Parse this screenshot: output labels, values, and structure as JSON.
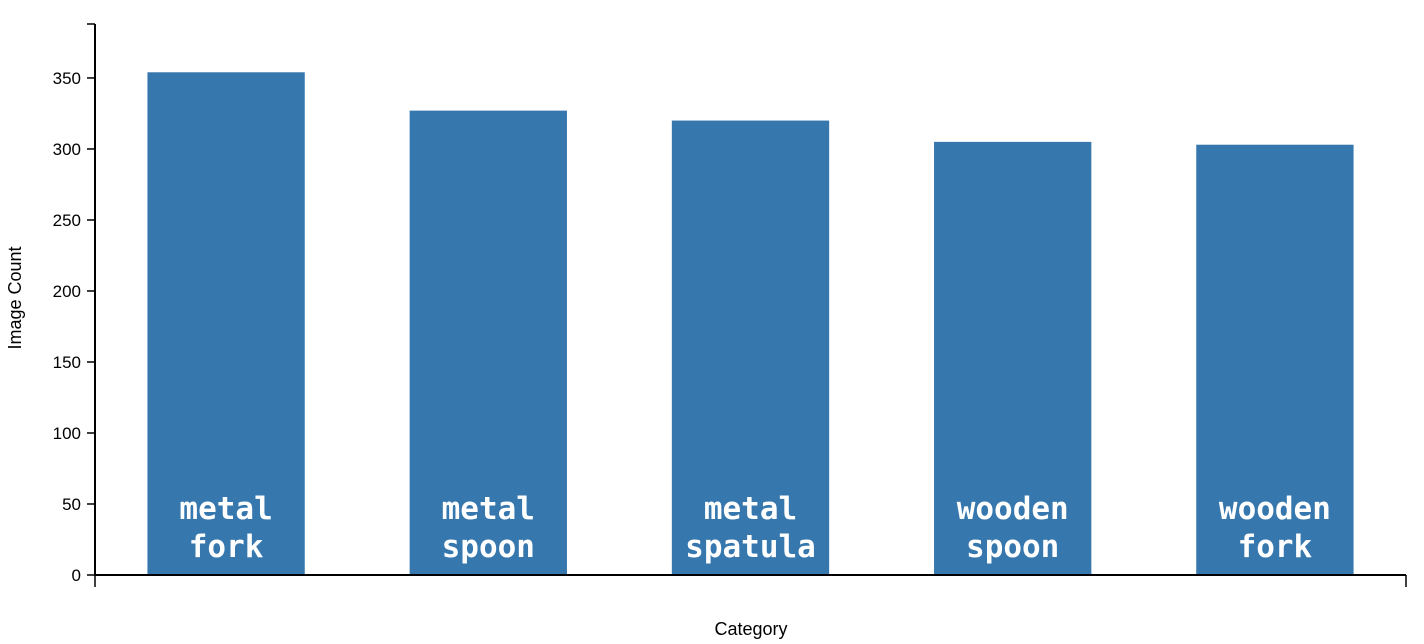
{
  "chart_data": {
    "type": "bar",
    "categories": [
      "metal fork",
      "metal spoon",
      "metal spatula",
      "wooden spoon",
      "wooden fork"
    ],
    "category_label_lines": [
      [
        "metal",
        "fork"
      ],
      [
        "metal",
        "spoon"
      ],
      [
        "metal",
        "spatula"
      ],
      [
        "wooden",
        "spoon"
      ],
      [
        "wooden",
        "fork"
      ]
    ],
    "values": [
      354,
      327,
      320,
      305,
      303
    ],
    "title": "",
    "xlabel": "Category",
    "ylabel": "Image Count",
    "ylim": [
      0,
      388
    ],
    "yticks": [
      0,
      50,
      100,
      150,
      200,
      250,
      300,
      350
    ],
    "grid": false,
    "legend": "none",
    "bar_color": "#3677ae",
    "label_color": "#ffffff"
  }
}
